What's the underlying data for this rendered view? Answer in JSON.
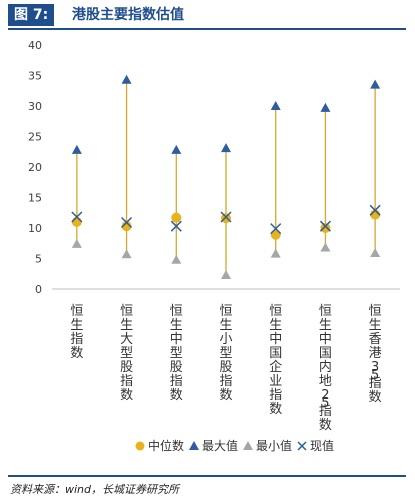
{
  "figure": {
    "label": "图 7:",
    "title": "港股主要指数估值",
    "source": "资料来源：wind，长城证券研究所"
  },
  "colors": {
    "accent": "#1f4e8c",
    "median": "#e8b21a",
    "max": "#2e5c9e",
    "min": "#a6a6a6",
    "current": "#2e5c9e",
    "range_line": "#d4a82a"
  },
  "chart_data": {
    "type": "scatter",
    "title": "",
    "xlabel": "",
    "ylabel": "",
    "ylim": [
      0,
      40
    ],
    "yticks": [
      0,
      5,
      10,
      15,
      20,
      25,
      30,
      35,
      40
    ],
    "grid": false,
    "legend_position": "bottom",
    "categories": [
      "恒生指数",
      "恒生大型股指数",
      "恒生中型股指数",
      "恒生小型股指数",
      "恒生中国企业指数",
      "恒生中国内地25指数",
      "恒生香港35指数"
    ],
    "series": [
      {
        "name": "中位数",
        "marker": "circle",
        "values": [
          11.0,
          10.3,
          11.7,
          11.6,
          8.9,
          10.0,
          12.2
        ]
      },
      {
        "name": "最大值",
        "marker": "triangle",
        "values": [
          22.8,
          34.3,
          22.8,
          23.1,
          30.0,
          29.7,
          33.5
        ]
      },
      {
        "name": "最小值",
        "marker": "triangle",
        "values": [
          7.4,
          5.7,
          4.8,
          2.3,
          5.8,
          6.8,
          5.9
        ]
      },
      {
        "name": "现值",
        "marker": "x",
        "values": [
          11.8,
          10.9,
          10.3,
          11.8,
          9.9,
          10.3,
          12.9
        ]
      }
    ]
  }
}
